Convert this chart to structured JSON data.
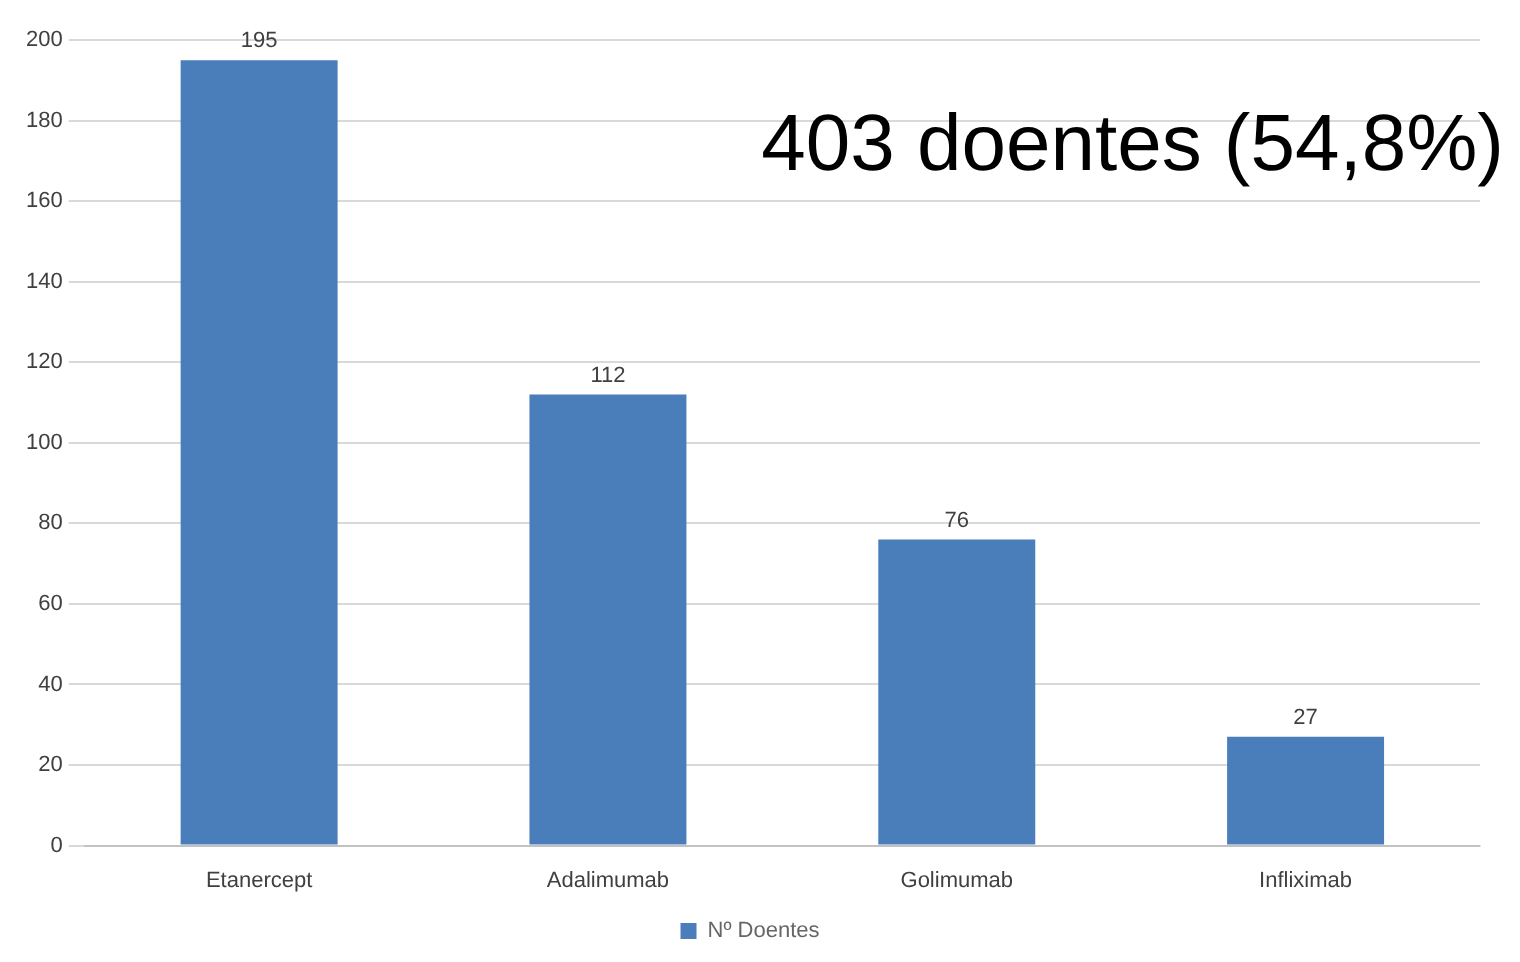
{
  "chart_data": {
    "type": "bar",
    "categories": [
      "Etanercept",
      "Adalimumab",
      "Golimumab",
      "Infliximab"
    ],
    "series": [
      {
        "name": "Nº Doentes",
        "color": "#4a7ebb",
        "values": [
          195,
          112,
          76,
          27
        ]
      }
    ],
    "ylim": [
      0,
      200
    ],
    "yticks": [
      0,
      20,
      40,
      60,
      80,
      100,
      120,
      140,
      160,
      180,
      200
    ],
    "grid": "y",
    "legend": "bottom",
    "data_labels": true,
    "annotations": [
      "403 doentes (54,8%)"
    ]
  }
}
